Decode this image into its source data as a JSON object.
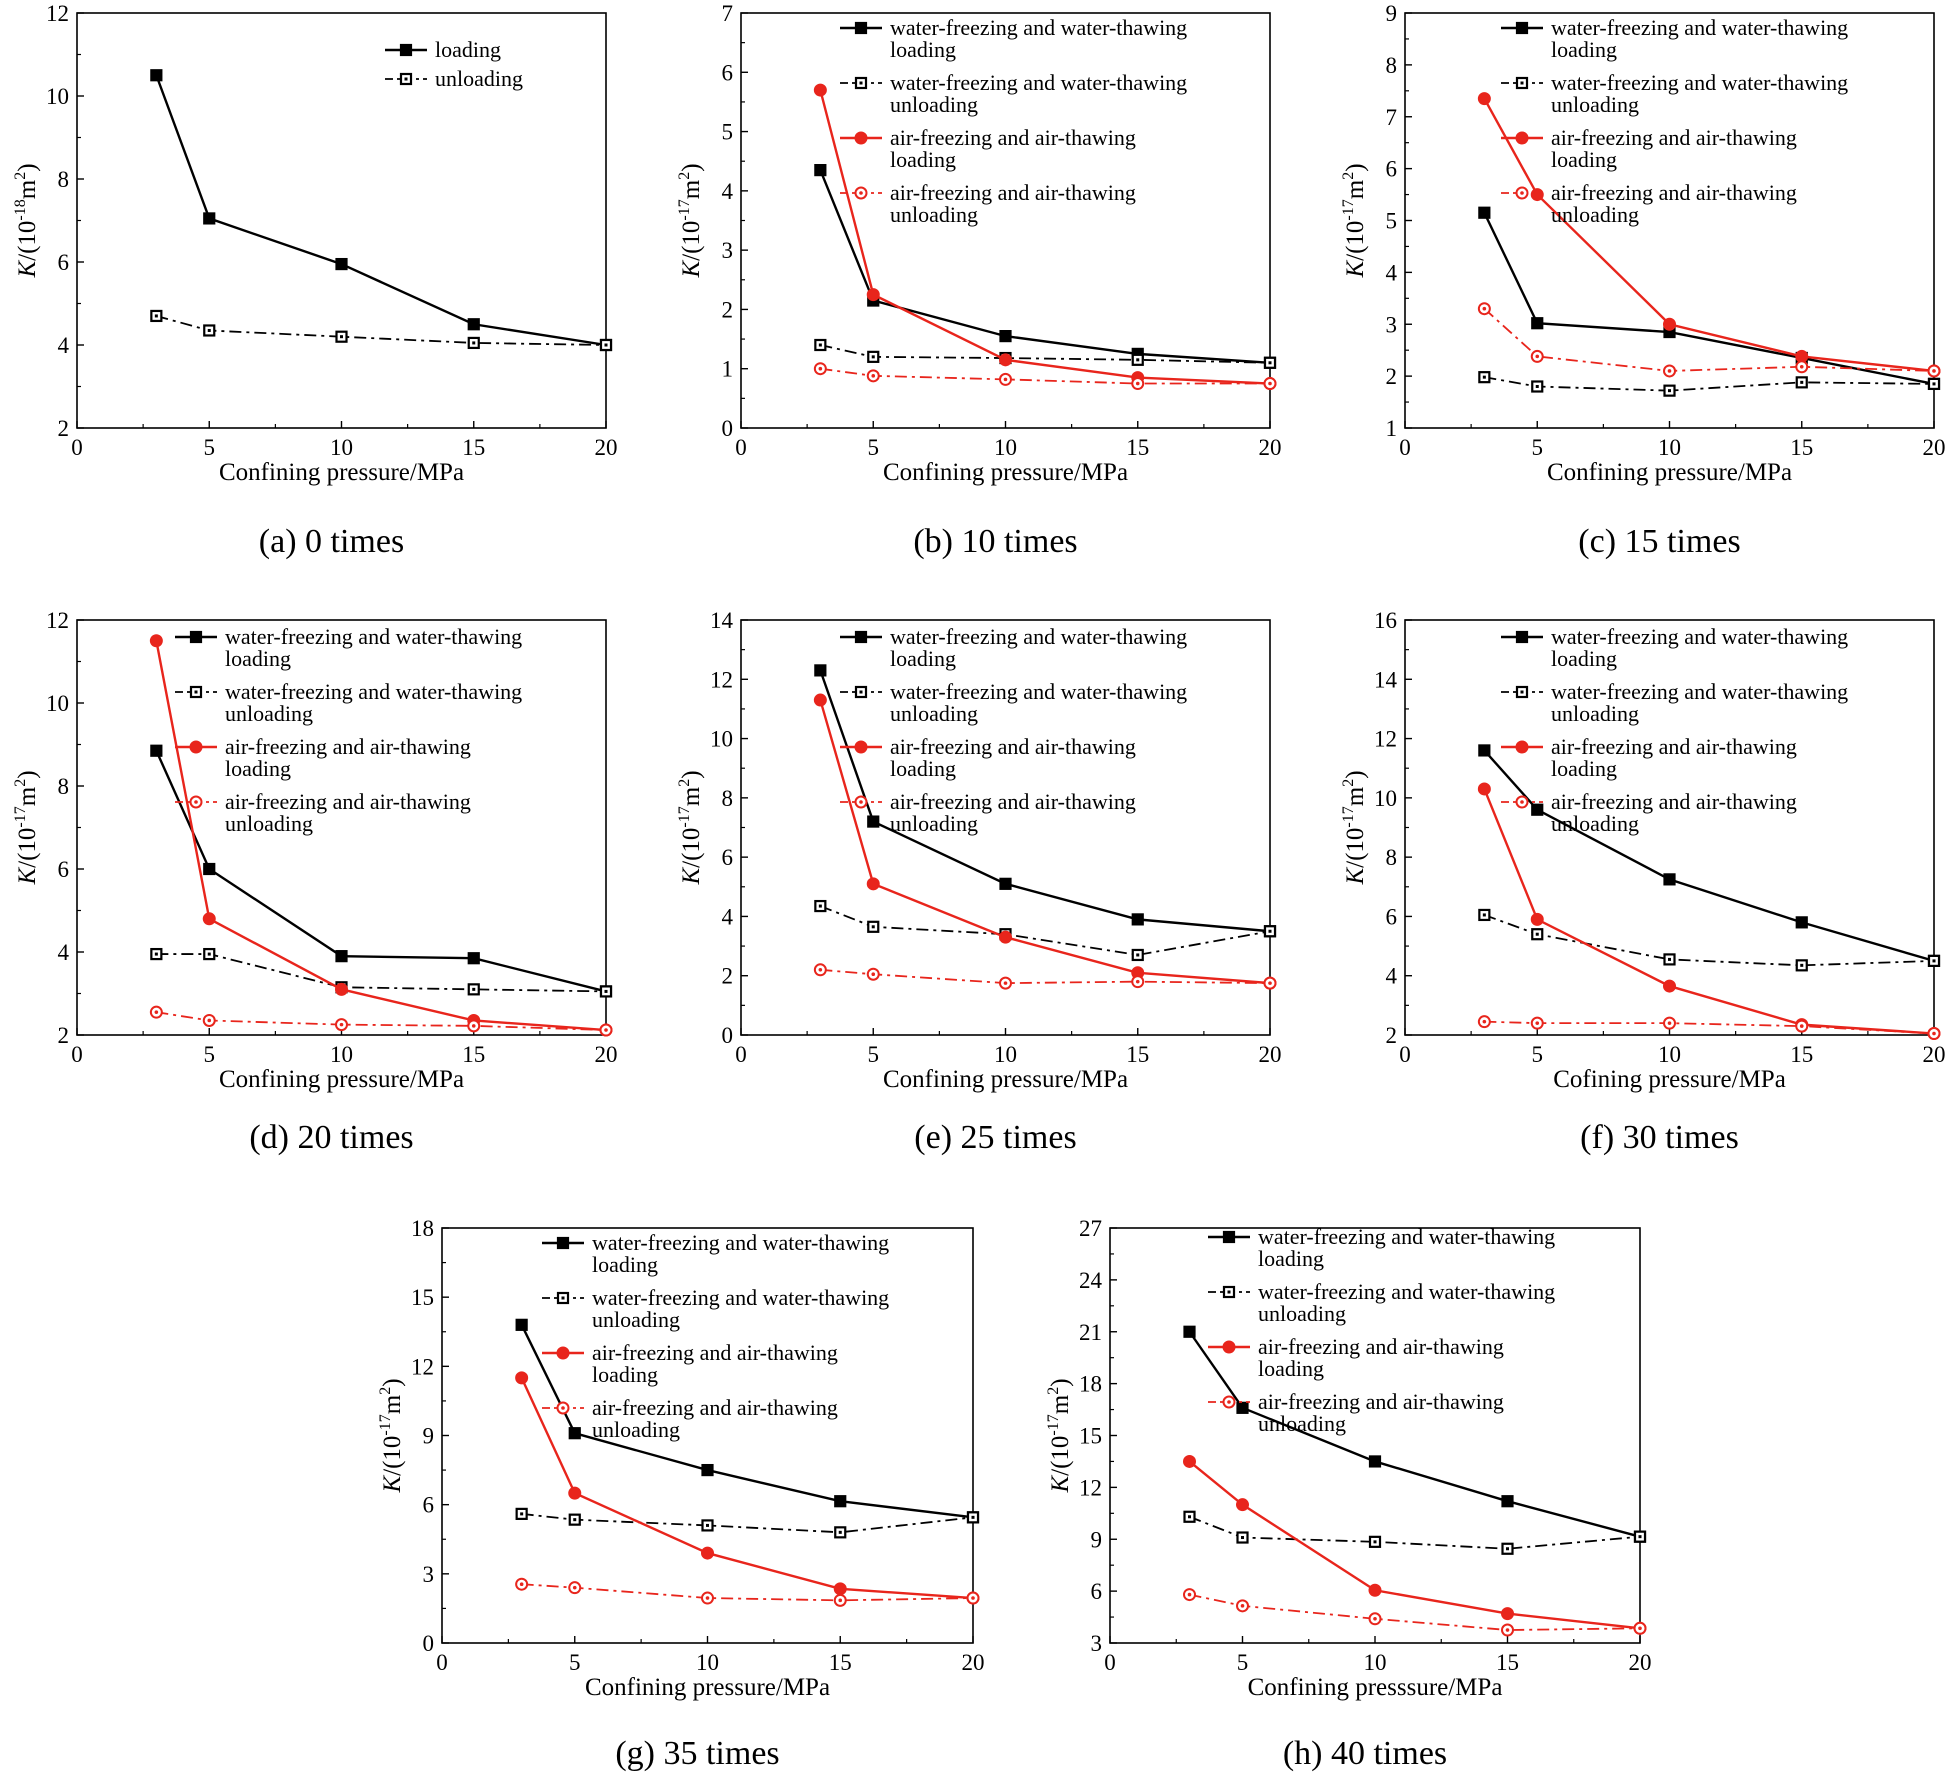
{
  "colors": {
    "black": "#000000",
    "red": "#e8251c"
  },
  "legend_labels": {
    "wl": [
      "water-freezing and water-thawing",
      "loading"
    ],
    "wu": [
      "water-freezing and water-thawing",
      "unloading"
    ],
    "al": [
      "air-freezing and air-thawing",
      "loading"
    ],
    "au": [
      "air-freezing and air-thawing",
      "unloading"
    ]
  },
  "chart_data": [
    {
      "id": "a",
      "type": "line",
      "caption": "(a) 0 times",
      "xlabel": "Confining pressure/MPa",
      "ylabel_main": "K/(10",
      "ylabel_exp": "-18",
      "ylabel_unit": "m",
      "ylabel_unit_exp": "2",
      "xlim": [
        0,
        20
      ],
      "ylim": [
        2,
        12
      ],
      "xticks": [
        0,
        5,
        10,
        15,
        20
      ],
      "yticks": [
        2,
        4,
        6,
        8,
        10,
        12
      ],
      "x": [
        3,
        5,
        10,
        15,
        20
      ],
      "series": [
        {
          "key": "loading",
          "name": [
            "loading"
          ],
          "values": [
            10.5,
            7.05,
            5.95,
            4.5,
            4.0
          ]
        },
        {
          "key": "unloading",
          "name": [
            "unloading"
          ],
          "values": [
            4.7,
            4.35,
            4.2,
            4.05,
            4.0
          ]
        }
      ]
    },
    {
      "id": "b",
      "type": "line",
      "caption": "(b) 10 times",
      "xlabel": "Confining pressure/MPa",
      "ylabel_main": "K/(10",
      "ylabel_exp": "-17",
      "ylabel_unit": "m",
      "ylabel_unit_exp": "2",
      "xlim": [
        0,
        20
      ],
      "ylim": [
        0,
        7
      ],
      "xticks": [
        0,
        5,
        10,
        15,
        20
      ],
      "yticks": [
        0,
        1,
        2,
        3,
        4,
        5,
        6,
        7
      ],
      "x": [
        3,
        5,
        10,
        15,
        20
      ],
      "series": [
        {
          "key": "wl",
          "values": [
            4.35,
            2.15,
            1.55,
            1.25,
            1.1
          ]
        },
        {
          "key": "wu",
          "values": [
            1.4,
            1.2,
            1.18,
            1.15,
            1.1
          ]
        },
        {
          "key": "al",
          "values": [
            5.7,
            2.25,
            1.15,
            0.85,
            0.75
          ]
        },
        {
          "key": "au",
          "values": [
            1.0,
            0.88,
            0.82,
            0.75,
            0.75
          ]
        }
      ]
    },
    {
      "id": "c",
      "type": "line",
      "caption": "(c) 15 times",
      "xlabel": "Confining pressure/MPa",
      "ylabel_main": "K/(10",
      "ylabel_exp": "-17",
      "ylabel_unit": "m",
      "ylabel_unit_exp": "2",
      "xlim": [
        0,
        20
      ],
      "ylim": [
        1,
        9
      ],
      "xticks": [
        0,
        5,
        10,
        15,
        20
      ],
      "yticks": [
        1,
        2,
        3,
        4,
        5,
        6,
        7,
        8,
        9
      ],
      "x": [
        3,
        5,
        10,
        15,
        20
      ],
      "series": [
        {
          "key": "wl",
          "values": [
            5.15,
            3.02,
            2.85,
            2.35,
            1.85
          ]
        },
        {
          "key": "wu",
          "values": [
            1.98,
            1.8,
            1.72,
            1.88,
            1.85
          ]
        },
        {
          "key": "al",
          "values": [
            7.35,
            5.5,
            3.0,
            2.38,
            2.1
          ]
        },
        {
          "key": "au",
          "values": [
            3.3,
            2.38,
            2.1,
            2.18,
            2.1
          ]
        }
      ]
    },
    {
      "id": "d",
      "type": "line",
      "caption": "(d) 20 times",
      "xlabel": "Confining pressure/MPa",
      "ylabel_main": "K/(10",
      "ylabel_exp": "-17",
      "ylabel_unit": "m",
      "ylabel_unit_exp": "2",
      "xlim": [
        0,
        20
      ],
      "ylim": [
        2,
        12
      ],
      "xticks": [
        0,
        5,
        10,
        15,
        20
      ],
      "yticks": [
        2,
        4,
        6,
        8,
        10,
        12
      ],
      "x": [
        3,
        5,
        10,
        15,
        20
      ],
      "series": [
        {
          "key": "wl",
          "values": [
            8.85,
            6.0,
            3.9,
            3.85,
            3.05
          ]
        },
        {
          "key": "wu",
          "values": [
            3.95,
            3.95,
            3.15,
            3.1,
            3.05
          ]
        },
        {
          "key": "al",
          "values": [
            11.5,
            4.8,
            3.1,
            2.35,
            2.12
          ]
        },
        {
          "key": "au",
          "values": [
            2.55,
            2.35,
            2.25,
            2.22,
            2.12
          ]
        }
      ]
    },
    {
      "id": "e",
      "type": "line",
      "caption": "(e) 25 times",
      "xlabel": "Confining pressure/MPa",
      "ylabel_main": "K/(10",
      "ylabel_exp": "-17",
      "ylabel_unit": "m",
      "ylabel_unit_exp": "2",
      "xlim": [
        0,
        20
      ],
      "ylim": [
        0,
        14
      ],
      "xticks": [
        0,
        5,
        10,
        15,
        20
      ],
      "yticks": [
        0,
        2,
        4,
        6,
        8,
        10,
        12,
        14
      ],
      "x": [
        3,
        5,
        10,
        15,
        20
      ],
      "series": [
        {
          "key": "wl",
          "values": [
            12.3,
            7.2,
            5.1,
            3.9,
            3.5
          ]
        },
        {
          "key": "wu",
          "values": [
            4.35,
            3.65,
            3.4,
            2.7,
            3.5
          ]
        },
        {
          "key": "al",
          "values": [
            11.3,
            5.1,
            3.3,
            2.1,
            1.75
          ]
        },
        {
          "key": "au",
          "values": [
            2.2,
            2.05,
            1.75,
            1.8,
            1.75
          ]
        }
      ]
    },
    {
      "id": "f",
      "type": "line",
      "caption": "(f) 30 times",
      "xlabel": "Cofining pressure/MPa",
      "ylabel_main": "K/(10",
      "ylabel_exp": "-17",
      "ylabel_unit": "m",
      "ylabel_unit_exp": "2",
      "xlim": [
        0,
        20
      ],
      "ylim": [
        2,
        16
      ],
      "xticks": [
        0,
        5,
        10,
        15,
        20
      ],
      "yticks": [
        2,
        4,
        6,
        8,
        10,
        12,
        14,
        16
      ],
      "x": [
        3,
        5,
        10,
        15,
        20
      ],
      "series": [
        {
          "key": "wl",
          "values": [
            11.6,
            9.6,
            7.25,
            5.8,
            4.5
          ]
        },
        {
          "key": "wu",
          "values": [
            6.05,
            5.4,
            4.55,
            4.35,
            4.5
          ]
        },
        {
          "key": "al",
          "values": [
            10.3,
            5.9,
            3.65,
            2.35,
            2.05
          ]
        },
        {
          "key": "au",
          "values": [
            2.45,
            2.4,
            2.4,
            2.3,
            2.05
          ]
        }
      ]
    },
    {
      "id": "g",
      "type": "line",
      "caption": "(g) 35 times",
      "xlabel": "Confining pressure/MPa",
      "ylabel_main": "K/(10",
      "ylabel_exp": "-17",
      "ylabel_unit": "m",
      "ylabel_unit_exp": "2",
      "xlim": [
        0,
        20
      ],
      "ylim": [
        0,
        18
      ],
      "xticks": [
        0,
        5,
        10,
        15,
        20
      ],
      "yticks": [
        0,
        3,
        6,
        9,
        12,
        15,
        18
      ],
      "x": [
        3,
        5,
        10,
        15,
        20
      ],
      "series": [
        {
          "key": "wl",
          "values": [
            13.8,
            9.1,
            7.5,
            6.15,
            5.45
          ]
        },
        {
          "key": "wu",
          "values": [
            5.6,
            5.35,
            5.1,
            4.8,
            5.45
          ]
        },
        {
          "key": "al",
          "values": [
            11.5,
            6.5,
            3.9,
            2.35,
            1.95
          ]
        },
        {
          "key": "au",
          "values": [
            2.55,
            2.4,
            1.95,
            1.85,
            1.95
          ]
        }
      ]
    },
    {
      "id": "h",
      "type": "line",
      "caption": "(h) 40 times",
      "xlabel": "Confining presssure/MPa",
      "ylabel_main": "K/(10",
      "ylabel_exp": "-17",
      "ylabel_unit": "m",
      "ylabel_unit_exp": "2",
      "xlim": [
        0,
        20
      ],
      "ylim": [
        3,
        27
      ],
      "xticks": [
        0,
        5,
        10,
        15,
        20
      ],
      "yticks": [
        3,
        6,
        9,
        12,
        15,
        18,
        21,
        24,
        27
      ],
      "x": [
        3,
        5,
        10,
        15,
        20
      ],
      "series": [
        {
          "key": "wl",
          "values": [
            21.0,
            16.6,
            13.5,
            11.2,
            9.15
          ]
        },
        {
          "key": "wu",
          "values": [
            10.3,
            9.1,
            8.85,
            8.45,
            9.15
          ]
        },
        {
          "key": "al",
          "values": [
            13.5,
            11.0,
            6.05,
            4.7,
            3.85
          ]
        },
        {
          "key": "au",
          "values": [
            5.8,
            5.15,
            4.4,
            3.75,
            3.85
          ]
        }
      ]
    }
  ]
}
